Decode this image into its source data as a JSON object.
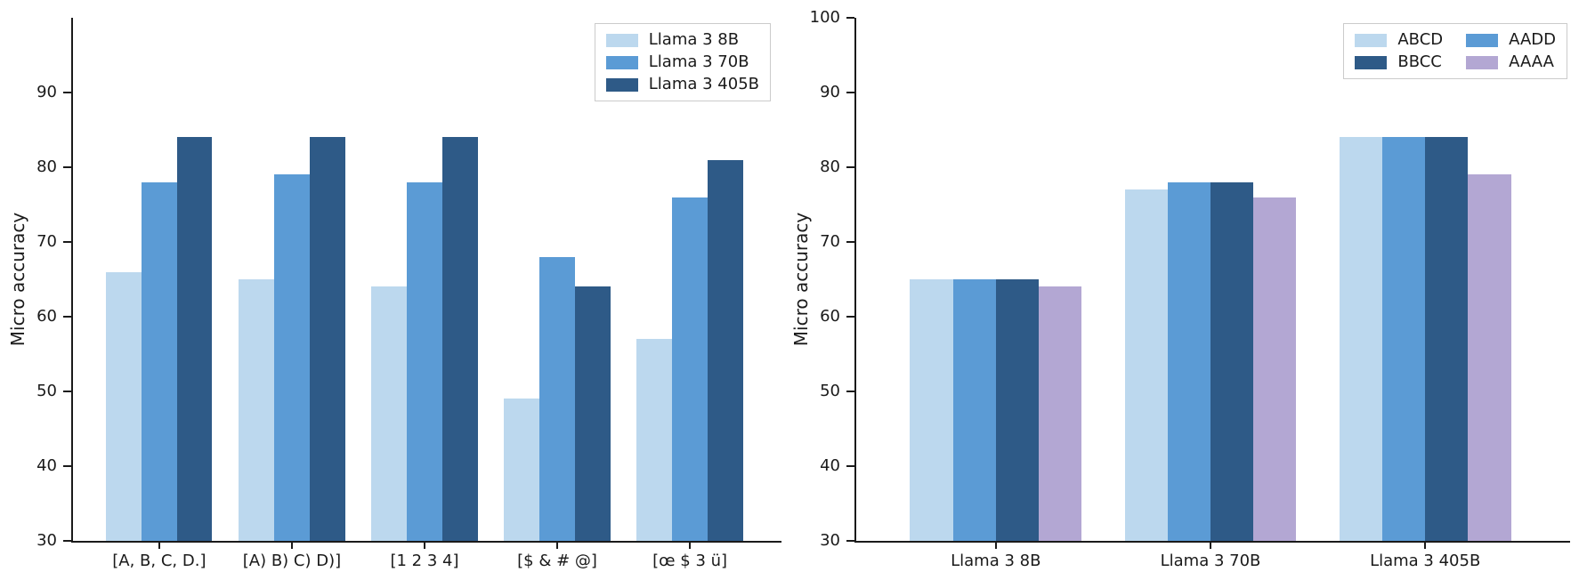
{
  "figure": {
    "background": "#ffffff",
    "axis_color": "#1a1a1a",
    "legend_border_color": "#cbcbcb"
  },
  "chart_data": [
    {
      "type": "bar",
      "title": "",
      "xlabel": "",
      "ylabel": "Micro accuracy",
      "ylim": [
        30,
        100
      ],
      "yticks": [
        30,
        40,
        50,
        60,
        70,
        80,
        90
      ],
      "grid": false,
      "legend_position": "upper right",
      "legend_ncol": 1,
      "bar_group_width": 0.8,
      "categories": [
        "[A, B, C, D.]",
        "[A) B) C) D)]",
        "[1 2 3 4]",
        "[$ & # @]",
        "[œ $ 3 ü]"
      ],
      "series": [
        {
          "name": "Llama 3 8B",
          "color": "#bcd8ee",
          "values": [
            66,
            65,
            64,
            49,
            57
          ]
        },
        {
          "name": "Llama 3 70B",
          "color": "#5b9bd5",
          "values": [
            78,
            79,
            78,
            68,
            76
          ]
        },
        {
          "name": "Llama 3 405B",
          "color": "#2e5a87",
          "values": [
            84,
            84,
            84,
            64,
            81
          ]
        }
      ]
    },
    {
      "type": "bar",
      "title": "",
      "xlabel": "",
      "ylabel": "Micro accuracy",
      "ylim": [
        30,
        100
      ],
      "yticks": [
        30,
        40,
        50,
        60,
        70,
        80,
        90,
        100
      ],
      "grid": false,
      "legend_position": "upper right",
      "legend_ncol": 2,
      "bar_group_width": 0.8,
      "categories": [
        "Llama 3 8B",
        "Llama 3 70B",
        "Llama 3 405B"
      ],
      "series": [
        {
          "name": "ABCD",
          "color": "#bcd8ee",
          "values": [
            65,
            77,
            84
          ]
        },
        {
          "name": "AADD",
          "color": "#5b9bd5",
          "values": [
            65,
            78,
            84
          ]
        },
        {
          "name": "BBCC",
          "color": "#2e5a87",
          "values": [
            65,
            78,
            84
          ]
        },
        {
          "name": "AAAA",
          "color": "#b3a7d3",
          "values": [
            64,
            76,
            79
          ]
        }
      ]
    }
  ]
}
